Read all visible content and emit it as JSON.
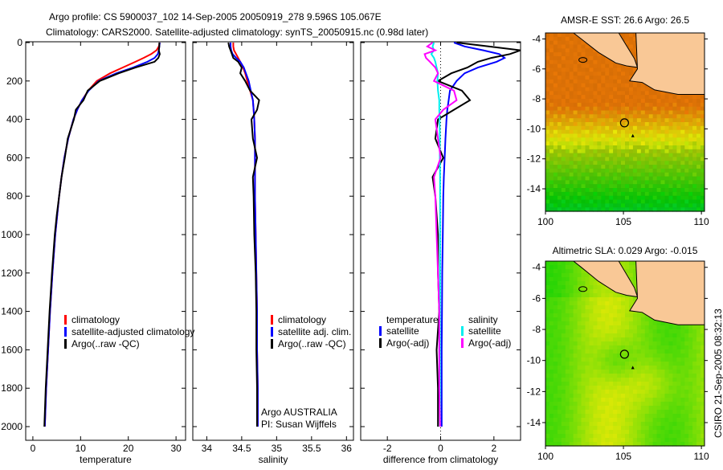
{
  "title": {
    "line1": "Argo profile: CS 5900037_102 14-Sep-2005 20050919_278 9.596S 105.067E",
    "line2": "Climatology: CARS2000. Satellite-adjusted climatology: synTS_20050915.nc (0.98d later)"
  },
  "side_label": "CSIRO 21-Sep-2005 08:32:13",
  "colors": {
    "climatology": "#ff0000",
    "satellite": "#0000ff",
    "argo": "#000000",
    "sal_satellite": "#00e5ee",
    "sal_argo": "#ff00ff",
    "land": "#f9c896"
  },
  "chart_data": [
    {
      "type": "line",
      "name": "temperature-profile",
      "xlabel": "temperature",
      "ylabel": "",
      "xlim": [
        -1.5,
        32
      ],
      "ylim": [
        2050,
        -20
      ],
      "xticks": [
        0,
        10,
        20,
        30
      ],
      "yticks": [
        0,
        200,
        400,
        600,
        800,
        1000,
        1200,
        1400,
        1600,
        1800,
        2000
      ],
      "legend": [
        "climatology",
        "satellite-adjusted climatology",
        "Argo(..raw -QC)"
      ],
      "depth": [
        0,
        20,
        40,
        60,
        80,
        100,
        130,
        160,
        200,
        250,
        300,
        350,
        400,
        500,
        600,
        700,
        800,
        900,
        1000,
        1200,
        1400,
        1600,
        1800,
        2000
      ],
      "series": [
        {
          "name": "climatology",
          "color": "red",
          "values": [
            26.6,
            26.4,
            25.9,
            24.8,
            23.2,
            21.5,
            18.8,
            16.2,
            13.4,
            11.6,
            10.3,
            9.3,
            8.5,
            7.4,
            6.6,
            6.0,
            5.5,
            5.1,
            4.7,
            4.1,
            3.6,
            3.2,
            2.8,
            2.5
          ]
        },
        {
          "name": "satellite-adjusted climatology",
          "color": "blue",
          "values": [
            26.6,
            26.5,
            26.4,
            26.2,
            25.5,
            24.0,
            21.0,
            17.5,
            13.8,
            11.7,
            10.3,
            9.3,
            8.5,
            7.4,
            6.6,
            6.0,
            5.5,
            5.1,
            4.7,
            4.1,
            3.6,
            3.2,
            2.8,
            2.5
          ]
        },
        {
          "name": "Argo(..raw -QC)",
          "color": "black",
          "values": [
            26.5,
            26.5,
            26.4,
            26.6,
            26.3,
            25.5,
            21.5,
            18.0,
            14.0,
            11.5,
            10.6,
            9.0,
            8.6,
            7.3,
            6.7,
            6.0,
            5.5,
            5.0,
            4.6,
            4.0,
            3.5,
            3.1,
            2.7,
            2.4
          ]
        }
      ]
    },
    {
      "type": "line",
      "name": "salinity-profile",
      "xlabel": "salinity",
      "xlim": [
        33.8,
        36.1
      ],
      "ylim": [
        2050,
        -20
      ],
      "xticks": [
        34,
        34.5,
        35,
        35.5,
        36
      ],
      "legend": [
        "climatology",
        "satellite adj. clim.",
        "Argo(..raw -QC)"
      ],
      "annotation": [
        "Argo AUSTRALIA",
        "PI: Susan Wijffels"
      ],
      "depth": [
        0,
        20,
        40,
        60,
        80,
        100,
        130,
        160,
        200,
        250,
        300,
        350,
        400,
        500,
        600,
        700,
        800,
        1000,
        1200,
        1400,
        1600,
        1800,
        2000
      ],
      "series": [
        {
          "name": "climatology",
          "color": "red",
          "values": [
            34.38,
            34.38,
            34.39,
            34.42,
            34.45,
            34.48,
            34.52,
            34.55,
            34.58,
            34.62,
            34.66,
            34.67,
            34.68,
            34.69,
            34.69,
            34.69,
            34.69,
            34.7,
            34.71,
            34.72,
            34.72,
            34.73,
            34.73
          ]
        },
        {
          "name": "satellite adj. clim.",
          "color": "blue",
          "values": [
            34.34,
            34.34,
            34.35,
            34.37,
            34.42,
            34.48,
            34.53,
            34.56,
            34.6,
            34.63,
            34.66,
            34.67,
            34.68,
            34.69,
            34.69,
            34.69,
            34.69,
            34.7,
            34.71,
            34.72,
            34.72,
            34.73,
            34.73
          ]
        },
        {
          "name": "Argo(..raw -QC)",
          "color": "black",
          "values": [
            34.31,
            34.32,
            34.34,
            34.36,
            34.38,
            34.45,
            34.5,
            34.48,
            34.55,
            34.62,
            34.75,
            34.72,
            34.64,
            34.66,
            34.72,
            34.66,
            34.67,
            34.68,
            34.7,
            34.71,
            34.71,
            34.72,
            34.72
          ]
        }
      ]
    },
    {
      "type": "line",
      "name": "difference-profile",
      "xlabel": "difference from climatology",
      "xlim": [
        -3,
        3
      ],
      "ylim": [
        2050,
        -20
      ],
      "xticks": [
        -2,
        0,
        2
      ],
      "legend_temperature": {
        "title": "temperature",
        "items": [
          "satellite",
          "Argo(-adj)"
        ]
      },
      "legend_salinity": {
        "title": "salinity",
        "items": [
          "satellite",
          "Argo(-adj)"
        ]
      },
      "depth": [
        0,
        20,
        40,
        60,
        80,
        100,
        130,
        160,
        200,
        250,
        300,
        350,
        400,
        500,
        600,
        700,
        800,
        1000,
        1200,
        1400,
        1600,
        1800,
        2000
      ],
      "series": [
        {
          "name": "temperature satellite",
          "color": "blue",
          "values": [
            0.5,
            0.9,
            1.6,
            2.2,
            2.4,
            2.1,
            1.4,
            0.9,
            0.6,
            0.35,
            0.3,
            0.25,
            0.22,
            0.18,
            0.15,
            0.12,
            0.1,
            0.08,
            0.06,
            0.05,
            0.04,
            0.04,
            0.04
          ]
        },
        {
          "name": "temperature Argo(-adj)",
          "color": "black",
          "values": [
            0.6,
            1.8,
            3.0,
            2.6,
            1.9,
            1.4,
            1.0,
            0.4,
            -0.1,
            0.8,
            1.1,
            0.5,
            -0.1,
            -0.2,
            0.1,
            -0.3,
            -0.2,
            -0.1,
            -0.1,
            -0.05,
            -0.15,
            -0.1,
            -0.1
          ]
        },
        {
          "name": "salinity satellite",
          "color": "cyan",
          "values": [
            -0.25,
            -0.3,
            -0.25,
            -0.35,
            -0.25,
            -0.2,
            -0.15,
            -0.1,
            -0.12,
            -0.1,
            -0.05,
            -0.05,
            -0.04,
            -0.03,
            -0.03,
            -0.02,
            -0.02,
            -0.02,
            -0.02,
            -0.02,
            -0.02,
            -0.02,
            -0.02
          ]
        },
        {
          "name": "salinity Argo(-adj)",
          "color": "magenta",
          "values": [
            -0.3,
            -0.5,
            -0.2,
            -0.6,
            -0.55,
            -0.4,
            -0.2,
            -0.1,
            -0.25,
            0.5,
            0.6,
            0.1,
            -0.2,
            -0.1,
            0.0,
            -0.25,
            -0.2,
            -0.15,
            -0.1,
            -0.05,
            -0.05,
            -0.05,
            -0.02
          ]
        }
      ]
    },
    {
      "type": "heatmap",
      "name": "sst-map",
      "title": "AMSR-E SST: 26.6 Argo: 26.5",
      "xlim": [
        100,
        110.2
      ],
      "ylim": [
        -15.5,
        -3.6
      ],
      "xticks": [
        100,
        105,
        110
      ],
      "yticks": [
        -4,
        -6,
        -8,
        -10,
        -12,
        -14
      ],
      "argo_position": [
        105.067,
        -9.596
      ]
    },
    {
      "type": "heatmap",
      "name": "sla-map",
      "title": "Altimetric SLA: 0.029 Argo: -0.015",
      "xlim": [
        100,
        110.2
      ],
      "ylim": [
        -15.5,
        -3.6
      ],
      "xticks": [
        100,
        105,
        110
      ],
      "yticks": [
        -4,
        -6,
        -8,
        -10,
        -12,
        -14
      ],
      "argo_position": [
        105.067,
        -9.596
      ]
    }
  ]
}
